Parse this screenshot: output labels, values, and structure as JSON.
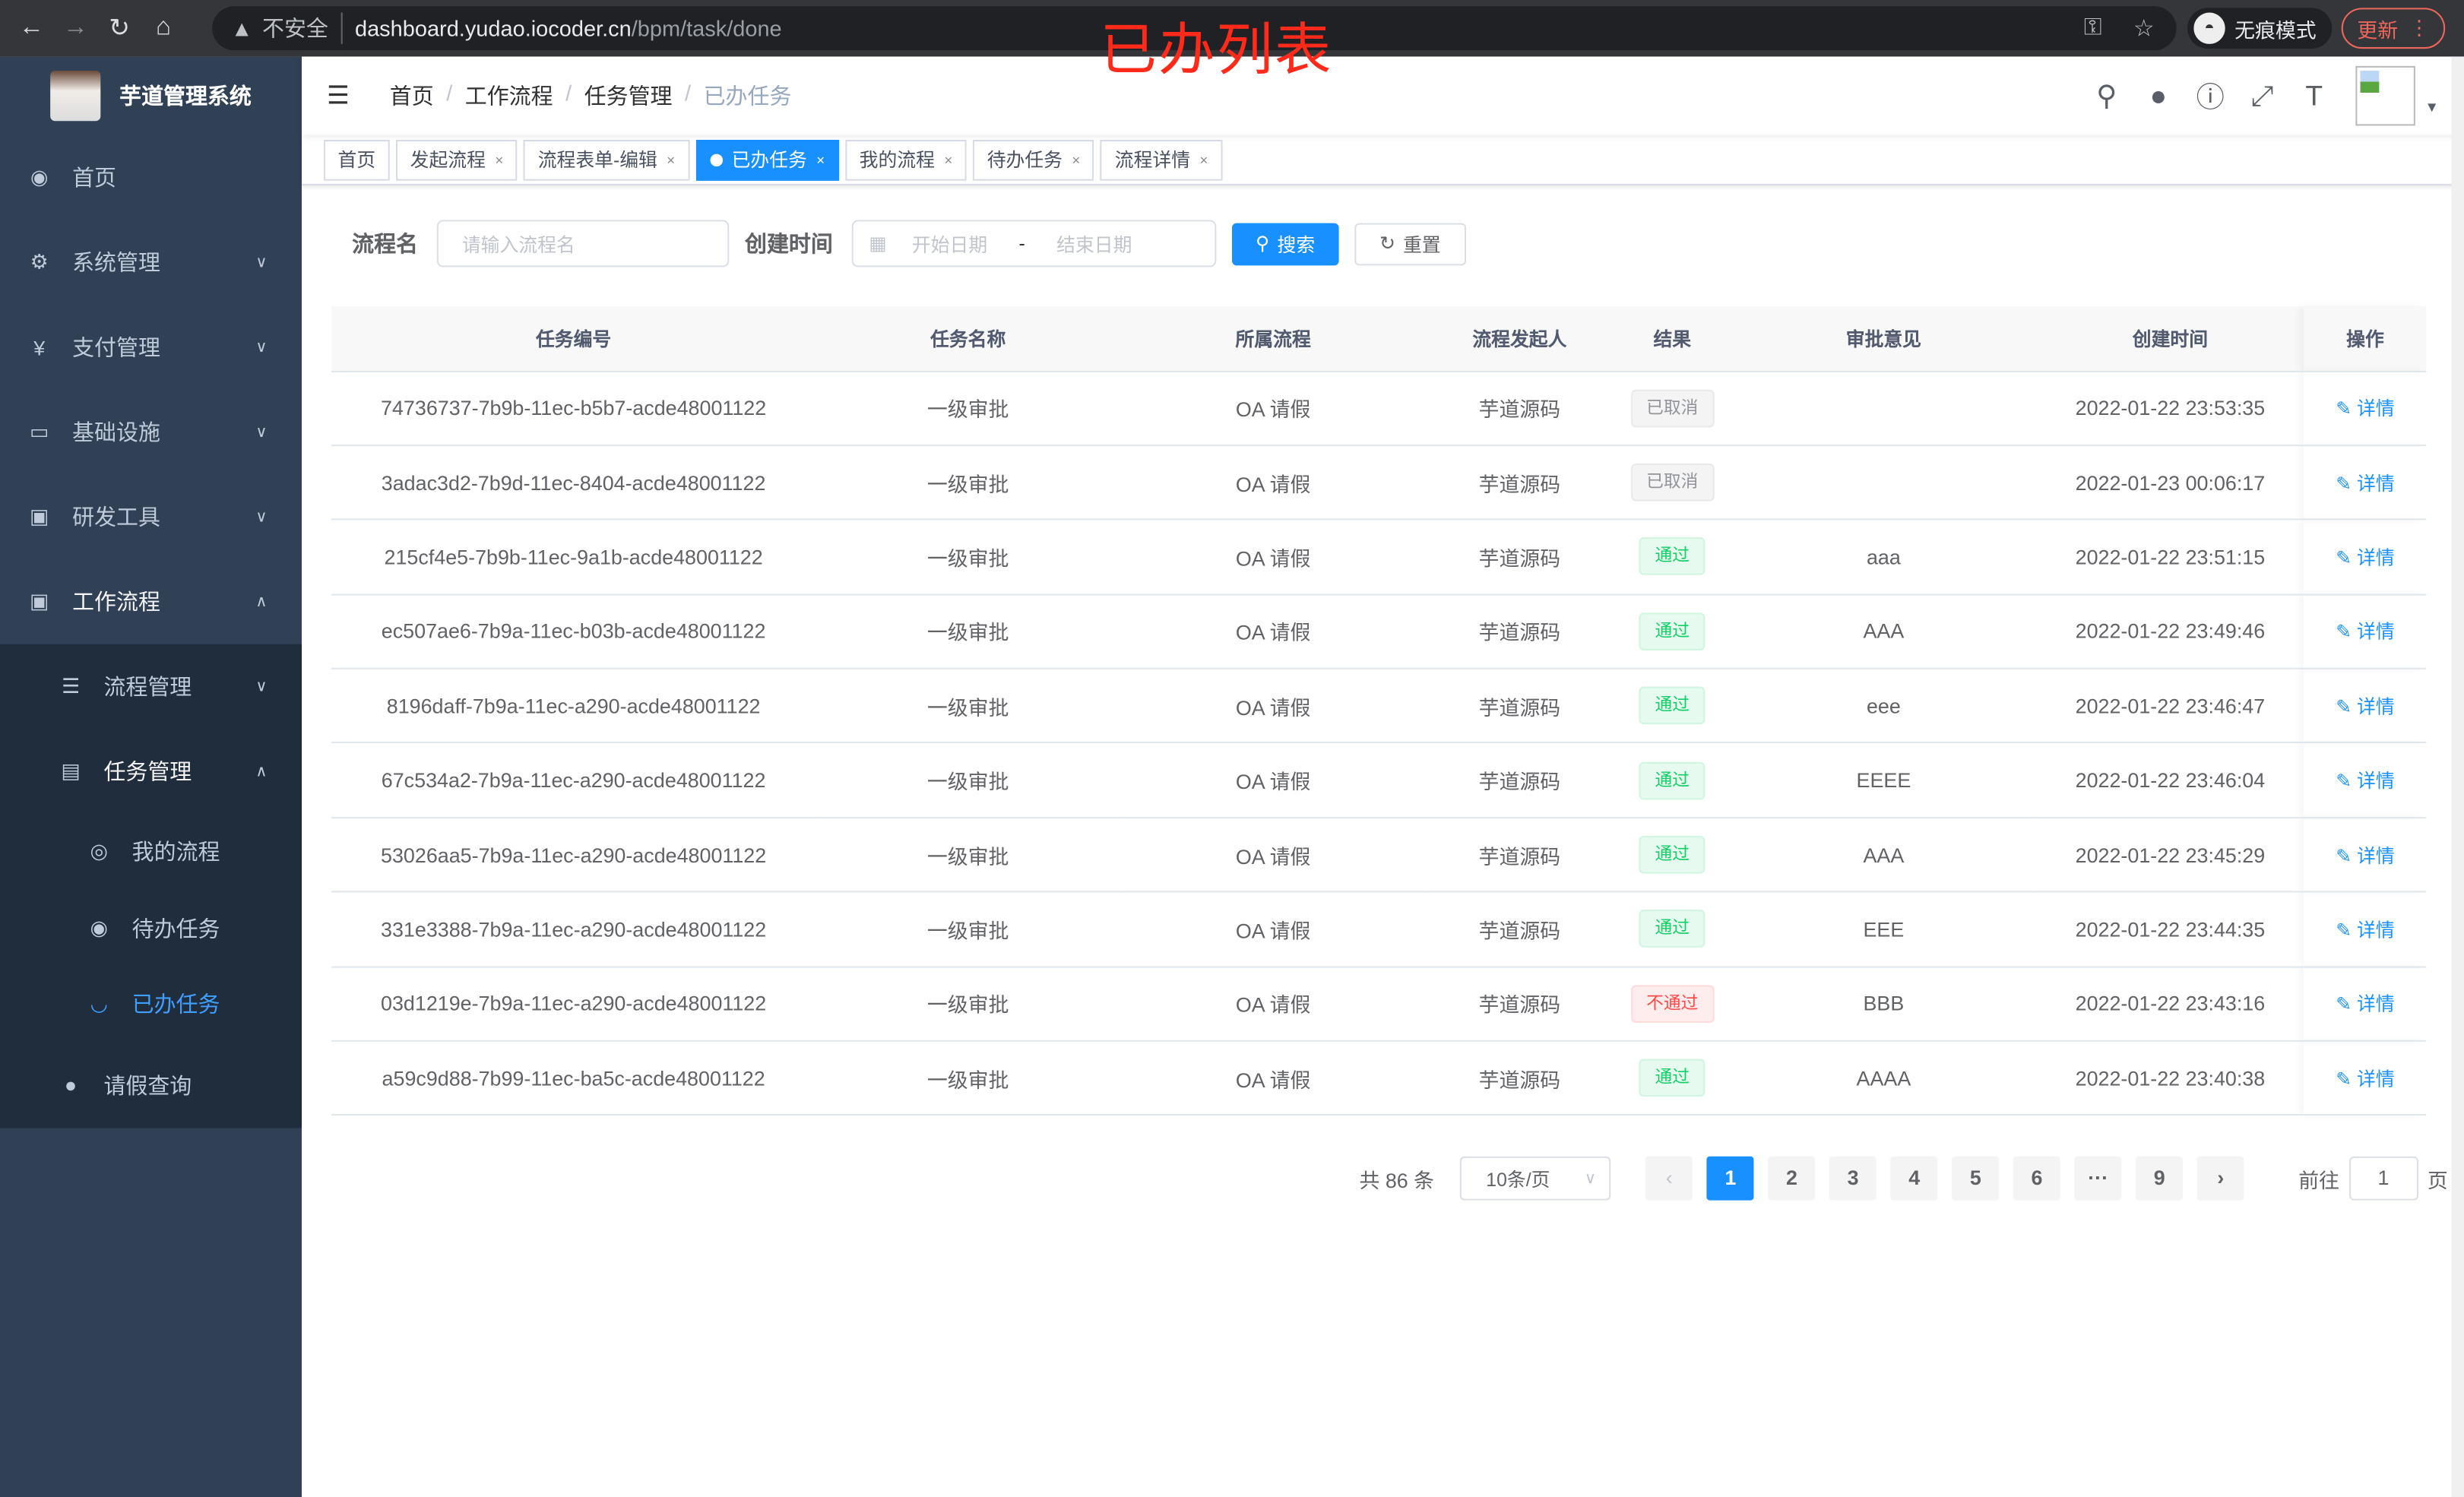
{
  "browser": {
    "security_label": "不安全",
    "url_host": "dashboard.yudao.iocoder.cn",
    "url_path": "/bpm/task/done",
    "incognito_label": "无痕模式",
    "update_label": "更新"
  },
  "annotation": "已办列表",
  "app": {
    "title": "芋道管理系统"
  },
  "sidebar": {
    "items": [
      {
        "label": "首页",
        "icon": "dashboard-icon"
      },
      {
        "label": "系统管理",
        "icon": "gear-icon"
      },
      {
        "label": "支付管理",
        "icon": "yen-icon"
      },
      {
        "label": "基础设施",
        "icon": "monitor-icon"
      },
      {
        "label": "研发工具",
        "icon": "toolbox-icon"
      },
      {
        "label": "工作流程",
        "icon": "toolbox-icon"
      }
    ],
    "workflow_children": [
      {
        "label": "流程管理"
      },
      {
        "label": "任务管理"
      }
    ],
    "task_children": [
      {
        "label": "我的流程"
      },
      {
        "label": "待办任务"
      },
      {
        "label": "已办任务"
      }
    ],
    "leave": {
      "label": "请假查询"
    }
  },
  "breadcrumb": [
    "首页",
    "工作流程",
    "任务管理",
    "已办任务"
  ],
  "tags": [
    {
      "label": "首页"
    },
    {
      "label": "发起流程"
    },
    {
      "label": "流程表单-编辑"
    },
    {
      "label": "已办任务"
    },
    {
      "label": "我的流程"
    },
    {
      "label": "待办任务"
    },
    {
      "label": "流程详情"
    }
  ],
  "filter": {
    "name_label": "流程名",
    "name_placeholder": "请输入流程名",
    "time_label": "创建时间",
    "start_placeholder": "开始日期",
    "range_sep": "-",
    "end_placeholder": "结束日期",
    "search_label": "搜索",
    "reset_label": "重置"
  },
  "table": {
    "headers": [
      "任务编号",
      "任务名称",
      "所属流程",
      "流程发起人",
      "结果",
      "审批意见",
      "创建时间",
      "操作"
    ],
    "action_label": "详情",
    "rows": [
      {
        "id": "74736737-7b9b-11ec-b5b7-acde48001122",
        "name": "一级审批",
        "process": "OA 请假",
        "starter": "芋道源码",
        "result": "已取消",
        "status": "cancel",
        "comment": "",
        "time": "2022-01-22 23:53:35"
      },
      {
        "id": "3adac3d2-7b9d-11ec-8404-acde48001122",
        "name": "一级审批",
        "process": "OA 请假",
        "starter": "芋道源码",
        "result": "已取消",
        "status": "cancel",
        "comment": "",
        "time": "2022-01-23 00:06:17"
      },
      {
        "id": "215cf4e5-7b9b-11ec-9a1b-acde48001122",
        "name": "一级审批",
        "process": "OA 请假",
        "starter": "芋道源码",
        "result": "通过",
        "status": "pass",
        "comment": "aaa",
        "time": "2022-01-22 23:51:15"
      },
      {
        "id": "ec507ae6-7b9a-11ec-b03b-acde48001122",
        "name": "一级审批",
        "process": "OA 请假",
        "starter": "芋道源码",
        "result": "通过",
        "status": "pass",
        "comment": "AAA",
        "time": "2022-01-22 23:49:46"
      },
      {
        "id": "8196daff-7b9a-11ec-a290-acde48001122",
        "name": "一级审批",
        "process": "OA 请假",
        "starter": "芋道源码",
        "result": "通过",
        "status": "pass",
        "comment": "eee",
        "time": "2022-01-22 23:46:47"
      },
      {
        "id": "67c534a2-7b9a-11ec-a290-acde48001122",
        "name": "一级审批",
        "process": "OA 请假",
        "starter": "芋道源码",
        "result": "通过",
        "status": "pass",
        "comment": "EEEE",
        "time": "2022-01-22 23:46:04"
      },
      {
        "id": "53026aa5-7b9a-11ec-a290-acde48001122",
        "name": "一级审批",
        "process": "OA 请假",
        "starter": "芋道源码",
        "result": "通过",
        "status": "pass",
        "comment": "AAA",
        "time": "2022-01-22 23:45:29"
      },
      {
        "id": "331e3388-7b9a-11ec-a290-acde48001122",
        "name": "一级审批",
        "process": "OA 请假",
        "starter": "芋道源码",
        "result": "通过",
        "status": "pass",
        "comment": "EEE",
        "time": "2022-01-22 23:44:35"
      },
      {
        "id": "03d1219e-7b9a-11ec-a290-acde48001122",
        "name": "一级审批",
        "process": "OA 请假",
        "starter": "芋道源码",
        "result": "不通过",
        "status": "fail",
        "comment": "BBB",
        "time": "2022-01-22 23:43:16"
      },
      {
        "id": "a59c9d88-7b99-11ec-ba5c-acde48001122",
        "name": "一级审批",
        "process": "OA 请假",
        "starter": "芋道源码",
        "result": "通过",
        "status": "pass",
        "comment": "AAAA",
        "time": "2022-01-22 23:40:38"
      }
    ]
  },
  "pagination": {
    "total_label": "共 86 条",
    "page_size": "10条/页",
    "pages": [
      "1",
      "2",
      "3",
      "4",
      "5",
      "6",
      "···",
      "9"
    ],
    "current": "1",
    "goto_label": "前往",
    "goto_value": "1",
    "page_suffix": "页"
  },
  "colors": {
    "sidebar_bg": "#304156",
    "submenu_bg": "#1f2d3d",
    "accent": "#1890ff",
    "pass": "#13ce66",
    "fail": "#ff4949",
    "annotation": "#ff2a1a"
  }
}
